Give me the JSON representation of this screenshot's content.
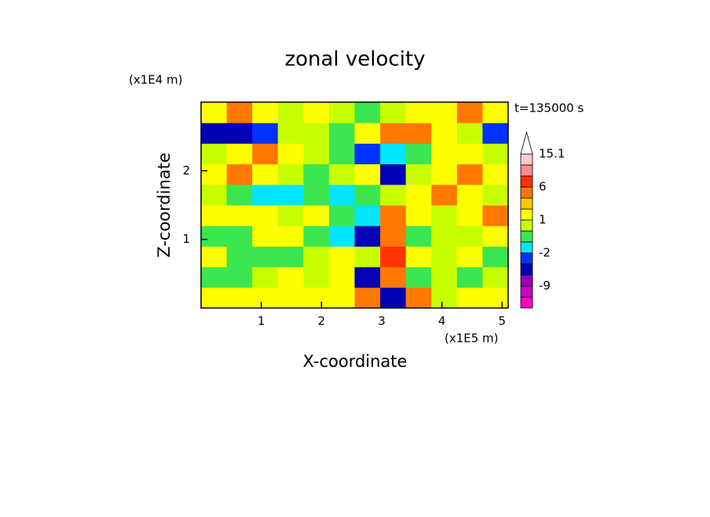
{
  "chart_data": {
    "type": "contour",
    "title": "zonal velocity",
    "y_unit_label": "(x1E4 m)",
    "x_unit_label": "(x1E5 m)",
    "time_label": "t=135000 s",
    "xlabel": "X-coordinate",
    "ylabel": "Z-coordinate",
    "xlim": [
      0,
      5.1
    ],
    "ylim": [
      0,
      3
    ],
    "xticks": [
      1,
      2,
      3,
      4,
      5
    ],
    "yticks": [
      1,
      2
    ],
    "z_rows_bottom_to_top": [
      [
        1.5,
        1.5,
        1.5,
        1.5,
        1.5,
        1.5,
        3,
        -4,
        4,
        0.5,
        1.5,
        1.5
      ],
      [
        -0.5,
        -0.5,
        0.5,
        1.5,
        0.5,
        1.5,
        -4,
        4,
        -0.5,
        0.5,
        -0.5,
        0.5
      ],
      [
        1.5,
        -0.5,
        -0.5,
        -0.5,
        0.5,
        1.5,
        0.5,
        7,
        1.5,
        0.5,
        1.5,
        -0.5
      ],
      [
        -0.5,
        -0.5,
        1.5,
        1.5,
        -0.5,
        -1.5,
        -4,
        4,
        -0.5,
        0.5,
        0.5,
        1.5
      ],
      [
        1.5,
        1.5,
        1.5,
        0.5,
        1.5,
        -0.5,
        -1.5,
        3,
        1.5,
        0.5,
        1.5,
        3
      ],
      [
        0.5,
        -0.5,
        -1.5,
        -1.5,
        -0.5,
        -1.5,
        -0.5,
        0.5,
        1.5,
        3,
        1.5,
        0.5
      ],
      [
        1.5,
        3,
        1.5,
        0.5,
        -0.5,
        0.5,
        1.5,
        -4,
        0.5,
        1.5,
        3,
        1.5
      ],
      [
        0.5,
        1.5,
        4,
        1.5,
        0.5,
        -0.5,
        -2.5,
        -1.5,
        -0.5,
        1.5,
        1.5,
        0.5
      ],
      [
        -4,
        -4,
        -2.5,
        0.5,
        0.5,
        -0.5,
        1.5,
        4,
        4,
        1.5,
        0.5,
        -2.5
      ],
      [
        1.5,
        3,
        1.5,
        0.5,
        1.5,
        0.5,
        -0.5,
        0.5,
        1.5,
        1.5,
        3,
        1.5
      ]
    ],
    "colorbar": {
      "levels": [
        -15,
        -12,
        -9,
        -6,
        -3,
        -2,
        -1,
        0,
        1,
        2,
        3,
        6,
        9,
        12,
        15.1
      ],
      "colors": [
        "#ff00c8",
        "#c800c8",
        "#9600b4",
        "#0000b4",
        "#0032ff",
        "#00e6ff",
        "#3ce650",
        "#c8ff00",
        "#ffff00",
        "#ffc800",
        "#ff7800",
        "#ff3200",
        "#ff8c8c",
        "#ffc8c8"
      ],
      "over_color": "#ffffff",
      "ticks": [
        15.1,
        6,
        1,
        -2,
        -9
      ]
    }
  }
}
